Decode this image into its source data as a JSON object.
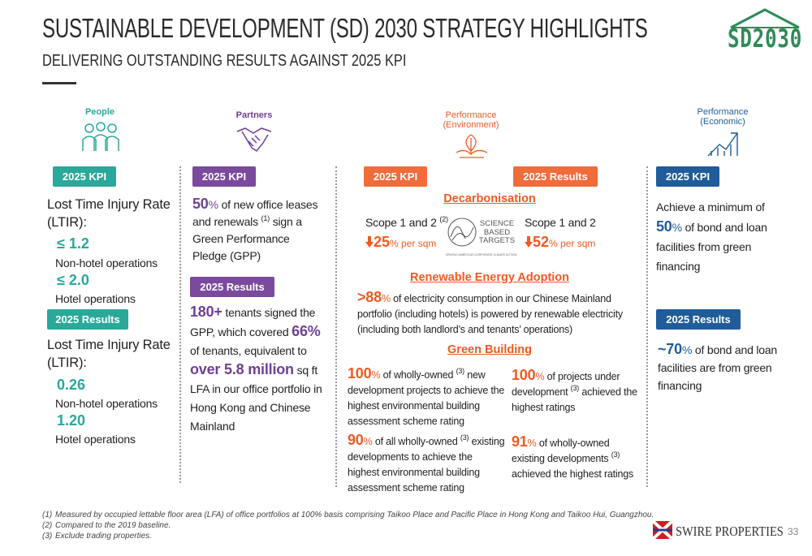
{
  "header": {
    "title": "SUSTAINABLE DEVELOPMENT (SD) 2030 STRATEGY HIGHLIGHTS",
    "subtitle": "DELIVERING OUTSTANDING RESULTS AGAINST 2025 KPI",
    "logo": "SD2030"
  },
  "people": {
    "label": "People",
    "kpi_badge": "2025 KPI",
    "kpi_metric": "Lost Time Injury Rate (LTIR):",
    "kpi_items": [
      {
        "value": "≤ 1.2",
        "label": "Non-hotel operations"
      },
      {
        "value": "≤ 2.0",
        "label": "Hotel operations"
      }
    ],
    "results_badge": "2025 Results",
    "results_metric": "Lost Time Injury Rate (LTIR):",
    "results_items": [
      {
        "value": "0.26",
        "label": "Non-hotel operations"
      },
      {
        "value": "1.20",
        "label": "Hotel operations"
      }
    ]
  },
  "partners": {
    "label": "Partners",
    "kpi_badge": "2025 KPI",
    "kpi": {
      "value": "50",
      "unit": "%",
      "text": "of new office leases and renewals",
      "note": "(1)",
      "text2": "sign a Green Performance Pledge (GPP)"
    },
    "results_badge": "2025 Results",
    "results": {
      "value": "180+",
      "text": "tenants signed the GPP, which covered",
      "value2": "66%",
      "text2": "of tenants, equivalent to",
      "value3": "over 5.8 million",
      "text3": "sq ft LFA in our office portfolio in Hong Kong and Chinese Mainland"
    }
  },
  "environment": {
    "label_lines": [
      "Performance",
      "(Environment)"
    ],
    "kpi_badge": "2025 KPI",
    "results_badge": "2025 Results",
    "decarbonisation": {
      "heading": "Decarbonisation",
      "kpi_scope": "Scope 1 and 2",
      "kpi_note": "(2)",
      "kpi_value": "25",
      "kpi_unit": "% per sqm",
      "results_scope": "Scope 1 and 2",
      "results_value": "52",
      "results_unit": "% per sqm",
      "logo_lines": [
        "SCIENCE",
        "BASED",
        "TARGETS"
      ],
      "logo_tagline": "DRIVING AMBITIOUS CORPORATE CLIMATE ACTION"
    },
    "renewable": {
      "heading": "Renewable Energy Adoption",
      "value": ">88",
      "unit": "%",
      "text": "of electricity consumption in our Chinese Mainland portfolio (including hotels) is powered by renewable electricity (including both landlord’s and tenants’ operations)"
    },
    "green_building": {
      "heading": "Green Building",
      "items": [
        {
          "value": "100",
          "unit": "%",
          "text": "of wholly-owned",
          "note": "(3)",
          "text2": "new development projects to achieve the highest environmental building assessment scheme rating"
        },
        {
          "value": "100",
          "unit": "%",
          "text": "of projects under development",
          "note": "(3)",
          "text2": "achieved the highest ratings"
        },
        {
          "value": "90",
          "unit": "%",
          "text": "of all wholly-owned",
          "note": "(3)",
          "text2": "existing developments to achieve the highest environmental building assessment scheme rating"
        },
        {
          "value": "91",
          "unit": "%",
          "text": "of wholly-owned existing developments",
          "note": "(3)",
          "text2": "achieved the highest ratings"
        }
      ]
    }
  },
  "economic": {
    "label_lines": [
      "Performance",
      "(Economic)"
    ],
    "kpi_badge": "2025 KPI",
    "kpi": {
      "text": "Achieve a minimum of",
      "value": "50",
      "unit": "%",
      "text2": "of bond and loan facilities from green financing"
    },
    "results_badge": "2025 Results",
    "results": {
      "value": "~70",
      "unit": "%",
      "text": "of bond and loan facilities are from green financing"
    }
  },
  "footnotes": [
    {
      "marker": "(1)",
      "text": "Measured by occupied lettable floor area (LFA) of office portfolios at 100% basis comprising Taikoo Place and Pacific Place in Hong Kong and Taikoo Hui, Guangzhou."
    },
    {
      "marker": "(2)",
      "text": "Compared to the 2019 baseline."
    },
    {
      "marker": "(3)",
      "text": "Exclude trading properties."
    }
  ],
  "footer": {
    "company": "SWIRE PROPERTIES",
    "page": "33"
  }
}
